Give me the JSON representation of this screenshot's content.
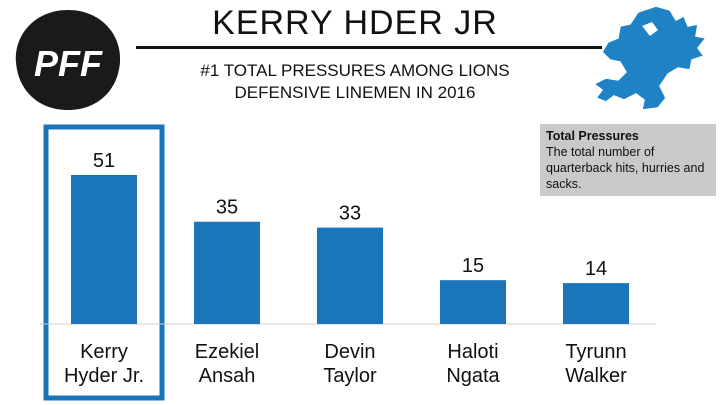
{
  "brand": {
    "logo_text": "PFF",
    "team_logo": "lions-logo-icon"
  },
  "header": {
    "title": "KERRY HDER JR",
    "subtitle_line1": "#1 TOTAL PRESSURES AMONG LIONS",
    "subtitle_line2": "DEFENSIVE LINEMEN IN 2016"
  },
  "definition": {
    "title": "Total Pressures",
    "text": "The total number of quarterback hits, hurries and sacks."
  },
  "colors": {
    "bar": "#1b75bb",
    "highlight": "#1b75bb",
    "logo_blue": "#1e82c4"
  },
  "chart_data": {
    "type": "bar",
    "categories": [
      "Kerry Hyder Jr.",
      "Ezekiel Ansah",
      "Devin Taylor",
      "Haloti Ngata",
      "Tyrunn Walker"
    ],
    "category_lines": [
      [
        "Kerry",
        "Hyder Jr."
      ],
      [
        "Ezekiel",
        "Ansah"
      ],
      [
        "Devin",
        "Taylor"
      ],
      [
        "Haloti",
        "Ngata"
      ],
      [
        "Tyrunn",
        "Walker"
      ]
    ],
    "values": [
      51,
      35,
      33,
      15,
      14
    ],
    "data_labels": [
      "51",
      "35",
      "33",
      "15",
      "14"
    ],
    "highlighted_index": 0,
    "title": "",
    "xlabel": "",
    "ylabel": "",
    "ylim": [
      0,
      51
    ],
    "grid": false,
    "legend": "none"
  }
}
